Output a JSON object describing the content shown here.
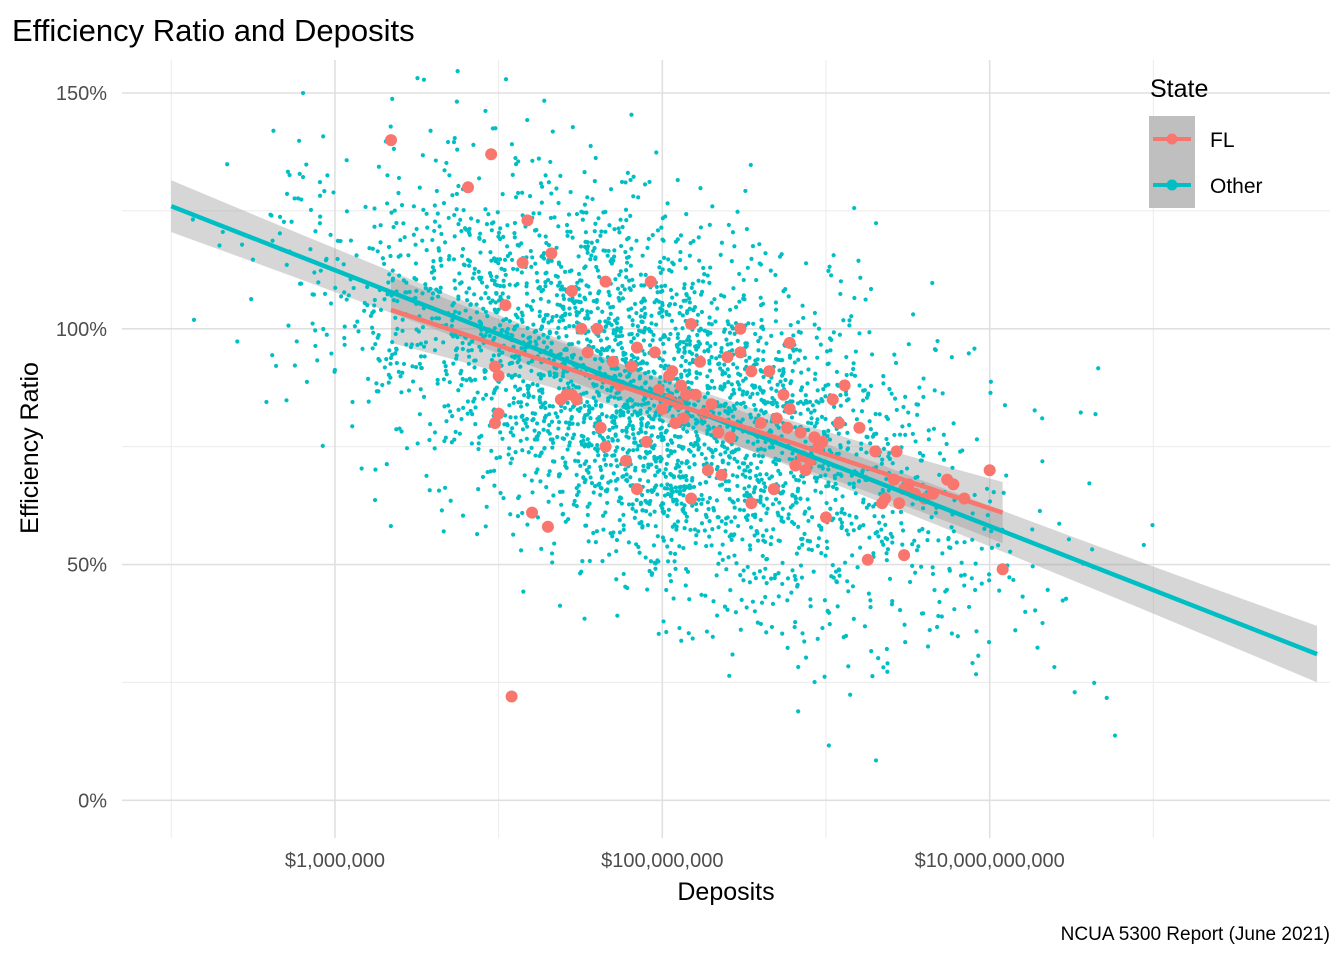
{
  "chart_data": {
    "type": "scatter",
    "title": "Efficiency Ratio and Deposits",
    "xlabel": "Deposits",
    "ylabel": "Efficiency Ratio",
    "caption": "NCUA 5300 Report (June 2021)",
    "x_scale": "log10",
    "xlim": [
      50000,
      1200000000000
    ],
    "ylim": [
      -0.08,
      1.57
    ],
    "x_ticks": [
      {
        "value": 1000000,
        "label": "$1,000,000"
      },
      {
        "value": 100000000,
        "label": "$100,000,000"
      },
      {
        "value": 10000000000,
        "label": "$10,000,000,000"
      }
    ],
    "x_minor_ticks": [
      100000,
      10000000,
      1000000000,
      100000000000
    ],
    "y_ticks": [
      {
        "value": 0,
        "label": "0%"
      },
      {
        "value": 0.5,
        "label": "50%"
      },
      {
        "value": 1.0,
        "label": "100%"
      },
      {
        "value": 1.5,
        "label": "150%"
      }
    ],
    "y_minor_ticks": [
      0.25,
      0.75,
      1.25
    ],
    "grid": true,
    "legend": {
      "title": "State",
      "position": "top-right"
    },
    "series": [
      {
        "name": "Other",
        "color": "#00BFC4",
        "point_count_estimate": 5000,
        "point_cloud": {
          "x_log10_center": 7.9,
          "x_log10_sd": 0.95,
          "y_center": 0.78,
          "y_sd": 0.19,
          "x_log10_range": [
            5.0,
            11.1
          ],
          "y_range": [
            0.05,
            1.57
          ]
        },
        "fit_line": {
          "x": [
            100000,
            1000000000000
          ],
          "y": [
            1.26,
            0.31
          ],
          "ci_halfwidth_ends": [
            0.055,
            0.06
          ]
        }
      },
      {
        "name": "FL",
        "color": "#F8766D",
        "point_count_estimate": 130,
        "points": [
          {
            "x": 2200000,
            "y": 1.4
          },
          {
            "x": 9000000,
            "y": 1.37
          },
          {
            "x": 6500000,
            "y": 1.3
          },
          {
            "x": 15000000,
            "y": 1.23
          },
          {
            "x": 14000000,
            "y": 1.14
          },
          {
            "x": 21000000,
            "y": 1.16
          },
          {
            "x": 11000000,
            "y": 1.05
          },
          {
            "x": 28000000,
            "y": 1.08
          },
          {
            "x": 45000000,
            "y": 1.1
          },
          {
            "x": 85000000,
            "y": 1.1
          },
          {
            "x": 32000000,
            "y": 1.0
          },
          {
            "x": 40000000,
            "y": 1.0
          },
          {
            "x": 150000000,
            "y": 1.01
          },
          {
            "x": 300000000,
            "y": 1.0
          },
          {
            "x": 600000000,
            "y": 0.97
          },
          {
            "x": 9500000,
            "y": 0.92
          },
          {
            "x": 10000000,
            "y": 0.9
          },
          {
            "x": 10000000,
            "y": 0.82
          },
          {
            "x": 9500000,
            "y": 0.8
          },
          {
            "x": 26000000,
            "y": 0.86
          },
          {
            "x": 30000000,
            "y": 0.85
          },
          {
            "x": 55000000,
            "y": 0.88
          },
          {
            "x": 70000000,
            "y": 0.96
          },
          {
            "x": 90000000,
            "y": 0.95
          },
          {
            "x": 110000000,
            "y": 0.9
          },
          {
            "x": 130000000,
            "y": 0.88
          },
          {
            "x": 160000000,
            "y": 0.86
          },
          {
            "x": 200000000,
            "y": 0.84
          },
          {
            "x": 250000000,
            "y": 0.94
          },
          {
            "x": 350000000,
            "y": 0.91
          },
          {
            "x": 400000000,
            "y": 0.8
          },
          {
            "x": 550000000,
            "y": 0.86
          },
          {
            "x": 600000000,
            "y": 0.83
          },
          {
            "x": 700000000,
            "y": 0.78
          },
          {
            "x": 800000000,
            "y": 0.72
          },
          {
            "x": 900000000,
            "y": 0.75
          },
          {
            "x": 1100000000,
            "y": 0.85
          },
          {
            "x": 1300000000,
            "y": 0.88
          },
          {
            "x": 1000000000,
            "y": 0.6
          },
          {
            "x": 1600000000,
            "y": 0.79
          },
          {
            "x": 2000000000,
            "y": 0.74
          },
          {
            "x": 2200000000,
            "y": 0.63
          },
          {
            "x": 2600000000,
            "y": 0.68
          },
          {
            "x": 3000000000,
            "y": 0.66
          },
          {
            "x": 3500000000,
            "y": 0.65
          },
          {
            "x": 2700000000,
            "y": 0.74
          },
          {
            "x": 3200000000,
            "y": 0.67
          },
          {
            "x": 4000000000,
            "y": 0.64
          },
          {
            "x": 5500000000,
            "y": 0.68
          },
          {
            "x": 6000000000,
            "y": 0.67
          },
          {
            "x": 10000000000,
            "y": 0.7
          },
          {
            "x": 12000000000,
            "y": 0.49
          },
          {
            "x": 3000000000,
            "y": 0.52
          },
          {
            "x": 1800000000,
            "y": 0.51
          },
          {
            "x": 150000000,
            "y": 0.64
          },
          {
            "x": 60000000,
            "y": 0.72
          },
          {
            "x": 20000000,
            "y": 0.58
          },
          {
            "x": 16000000,
            "y": 0.61
          },
          {
            "x": 12000000,
            "y": 0.22
          },
          {
            "x": 70000000,
            "y": 0.66
          },
          {
            "x": 45000000,
            "y": 0.75
          },
          {
            "x": 80000000,
            "y": 0.76
          },
          {
            "x": 100000000,
            "y": 0.83
          },
          {
            "x": 120000000,
            "y": 0.8
          },
          {
            "x": 140000000,
            "y": 0.86
          },
          {
            "x": 180000000,
            "y": 0.82
          },
          {
            "x": 220000000,
            "y": 0.78
          },
          {
            "x": 260000000,
            "y": 0.77
          },
          {
            "x": 500000000,
            "y": 0.81
          },
          {
            "x": 650000000,
            "y": 0.71
          },
          {
            "x": 750000000,
            "y": 0.7
          },
          {
            "x": 850000000,
            "y": 0.77
          },
          {
            "x": 35000000,
            "y": 0.95
          },
          {
            "x": 50000000,
            "y": 0.93
          },
          {
            "x": 65000000,
            "y": 0.92
          },
          {
            "x": 95000000,
            "y": 0.87
          },
          {
            "x": 115000000,
            "y": 0.91
          },
          {
            "x": 125000000,
            "y": 0.84
          },
          {
            "x": 170000000,
            "y": 0.93
          },
          {
            "x": 300000000,
            "y": 0.95
          },
          {
            "x": 450000000,
            "y": 0.91
          },
          {
            "x": 24000000,
            "y": 0.85
          },
          {
            "x": 28000000,
            "y": 0.86
          },
          {
            "x": 42000000,
            "y": 0.79
          },
          {
            "x": 110000000,
            "y": 0.85
          },
          {
            "x": 135000000,
            "y": 0.81
          },
          {
            "x": 190000000,
            "y": 0.7
          },
          {
            "x": 230000000,
            "y": 0.69
          },
          {
            "x": 350000000,
            "y": 0.63
          },
          {
            "x": 480000000,
            "y": 0.66
          },
          {
            "x": 580000000,
            "y": 0.79
          },
          {
            "x": 720000000,
            "y": 0.73
          },
          {
            "x": 950000000,
            "y": 0.76
          },
          {
            "x": 1200000000,
            "y": 0.8
          },
          {
            "x": 2300000000,
            "y": 0.64
          },
          {
            "x": 2800000000,
            "y": 0.63
          },
          {
            "x": 4500000000,
            "y": 0.65
          },
          {
            "x": 7000000000,
            "y": 0.64
          }
        ],
        "fit_line": {
          "x": [
            2200000,
            12000000000
          ],
          "y": [
            1.04,
            0.61
          ],
          "ci_halfwidth_ends": [
            0.07,
            0.065
          ]
        }
      }
    ]
  }
}
